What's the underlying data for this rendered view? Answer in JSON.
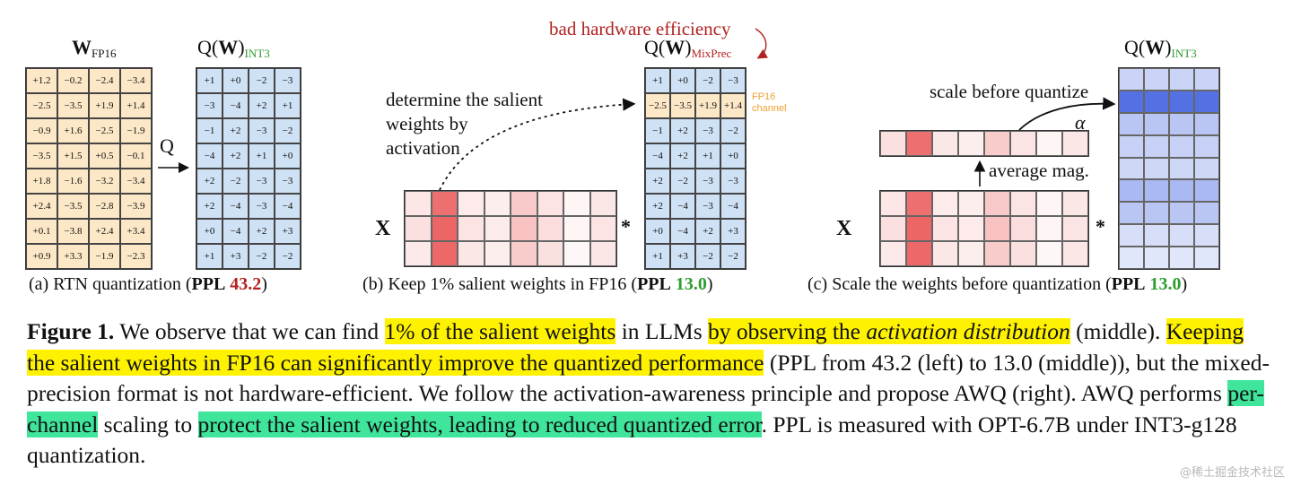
{
  "colors": {
    "fp16_cell": "#fce8c7",
    "int3_cell": "#cfe1f4",
    "salient_row": "#fce8c7",
    "fp16_label": "#f0a030",
    "green": "#2e9c2e",
    "red": "#b22222",
    "highlight_yellow": "#fff200",
    "highlight_green": "#3ee59a"
  },
  "panel_a": {
    "w_title": "W",
    "w_sub": "FP16",
    "q_title_pre": "Q(",
    "q_title_w": "W",
    "q_title_post": ")",
    "q_sub": "INT3",
    "arrow_label": "Q",
    "fp16_values": [
      [
        "+1.2",
        "−0.2",
        "−2.4",
        "−3.4"
      ],
      [
        "−2.5",
        "−3.5",
        "+1.9",
        "+1.4"
      ],
      [
        "−0.9",
        "+1.6",
        "−2.5",
        "−1.9"
      ],
      [
        "−3.5",
        "+1.5",
        "+0.5",
        "−0.1"
      ],
      [
        "+1.8",
        "−1.6",
        "−3.2",
        "−3.4"
      ],
      [
        "+2.4",
        "−3.5",
        "−2.8",
        "−3.9"
      ],
      [
        "+0.1",
        "−3.8",
        "+2.4",
        "+3.4"
      ],
      [
        "+0.9",
        "+3.3",
        "−1.9",
        "−2.3"
      ]
    ],
    "int3_values": [
      [
        "+1",
        "+0",
        "−2",
        "−3"
      ],
      [
        "−3",
        "−4",
        "+2",
        "+1"
      ],
      [
        "−1",
        "+2",
        "−3",
        "−2"
      ],
      [
        "−4",
        "+2",
        "+1",
        "+0"
      ],
      [
        "+2",
        "−2",
        "−3",
        "−3"
      ],
      [
        "+2",
        "−4",
        "−3",
        "−4"
      ],
      [
        "+0",
        "−4",
        "+2",
        "+3"
      ],
      [
        "+1",
        "+3",
        "−2",
        "−2"
      ]
    ],
    "caption_pre": "(a) RTN quantization (",
    "caption_ppl": "PPL",
    "caption_value": "43.2",
    "caption_post": ")"
  },
  "panel_b": {
    "bad_efficiency": "bad hardware efficiency",
    "q_title_pre": "Q(",
    "q_title_w": "W",
    "q_title_post": ")",
    "q_sub": "MixPrec",
    "determine_line1": "determine the salient",
    "determine_line2": "weights by",
    "determine_line3": "activation",
    "x_label": "X",
    "star": "*",
    "fp16_channel_line1": "FP16",
    "fp16_channel_line2": "channel",
    "salient_row_index": 1,
    "mix_values": [
      [
        "+1",
        "+0",
        "−2",
        "−3"
      ],
      [
        "−2.5",
        "−3.5",
        "+1.9",
        "+1.4"
      ],
      [
        "−1",
        "+2",
        "−3",
        "−2"
      ],
      [
        "−4",
        "+2",
        "+1",
        "+0"
      ],
      [
        "+2",
        "−2",
        "−3",
        "−3"
      ],
      [
        "+2",
        "−4",
        "−3",
        "−4"
      ],
      [
        "+0",
        "−4",
        "+2",
        "+3"
      ],
      [
        "+1",
        "+3",
        "−2",
        "−2"
      ]
    ],
    "x_heatmap": [
      [
        0.15,
        0.85,
        0.12,
        0.1,
        0.32,
        0.16,
        0.06,
        0.14
      ],
      [
        0.18,
        0.9,
        0.16,
        0.12,
        0.36,
        0.2,
        0.06,
        0.16
      ],
      [
        0.13,
        0.88,
        0.14,
        0.1,
        0.3,
        0.18,
        0.05,
        0.14
      ]
    ],
    "caption_pre": "(b) Keep 1% salient weights in FP16 (",
    "caption_ppl": "PPL",
    "caption_value": "13.0",
    "caption_post": ")"
  },
  "panel_c": {
    "q_title_pre": "Q(",
    "q_title_w": "W",
    "q_title_post": ")",
    "q_sub": "INT3",
    "scale_label": "scale before quantize",
    "alpha": "α",
    "avg_label": "average mag.",
    "x_label": "X",
    "star": "*",
    "avg_strip": [
      0.18,
      0.85,
      0.14,
      0.1,
      0.3,
      0.16,
      0.06,
      0.14
    ],
    "x_heatmap": [
      [
        0.15,
        0.85,
        0.12,
        0.1,
        0.32,
        0.16,
        0.06,
        0.14
      ],
      [
        0.18,
        0.9,
        0.16,
        0.12,
        0.36,
        0.2,
        0.06,
        0.16
      ],
      [
        0.13,
        0.88,
        0.14,
        0.1,
        0.3,
        0.18,
        0.05,
        0.14
      ]
    ],
    "w_rows": [
      0.2,
      0.85,
      0.3,
      0.22,
      0.18,
      0.38,
      0.3,
      0.14,
      0.08
    ],
    "caption_pre": "(c) Scale the weights before quantization (",
    "caption_ppl": "PPL",
    "caption_value": "13.0",
    "caption_post": ")"
  },
  "figure_caption": {
    "label": "Figure 1.",
    "t1": " We observe that we can find ",
    "h1": "1% of the salient weights",
    "t2": " in LLMs ",
    "h2a": "by observing the ",
    "h2b": "activation distribution",
    "t3": " (middle). ",
    "h3": "Keeping the salient weights in FP16 can significantly improve the quantized performance",
    "t4": " (PPL from 43.2 (left) to 13.0 (middle)), but the mixed-precision format is not hardware-efficient. We follow the activation-awareness principle and propose AWQ (right). AWQ performs ",
    "h4": "per-channel",
    "t5": " scaling to ",
    "h5": "protect the salient weights, leading to reduced quantized error",
    "t6": ". PPL is measured with OPT-6.7B under INT3-g128 quantization."
  },
  "watermark": "@稀土掘金技术社区"
}
